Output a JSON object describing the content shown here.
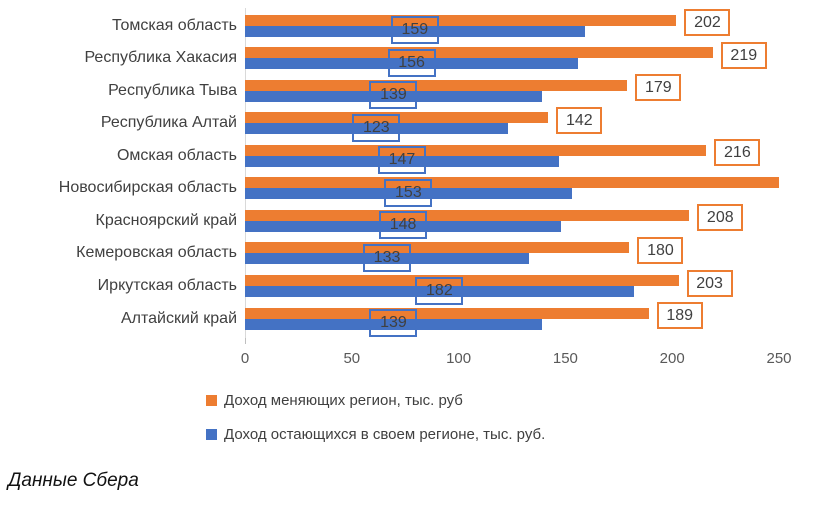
{
  "chart_data": {
    "type": "bar",
    "orientation": "horizontal",
    "title": "",
    "categories": [
      "Томская область",
      "Республика Хакасия",
      "Республика Тыва",
      "Республика Алтай",
      "Омская область",
      "Новосибирская область",
      "Красноярский край",
      "Кемеровская область",
      "Иркутская область",
      "Алтайский край"
    ],
    "series": [
      {
        "name": "Доход меняющих регион, тыс. руб",
        "color": "#ED7D31",
        "values": [
          202,
          219,
          179,
          142,
          216,
          250,
          208,
          180,
          203,
          189
        ],
        "labels": [
          "202",
          "219",
          "179",
          "142",
          "216",
          "",
          "208",
          "180",
          "203",
          "189"
        ],
        "label_position": "outside-end"
      },
      {
        "name": "Доход остающихся в своем регионе, тыс. руб.",
        "color": "#4472C4",
        "values": [
          159,
          156,
          139,
          123,
          147,
          153,
          148,
          133,
          182,
          139
        ],
        "labels": [
          "159",
          "156",
          "139",
          "123",
          "147",
          "153",
          "148",
          "133",
          "182",
          "139"
        ],
        "label_position": "inside-center"
      }
    ],
    "x_ticks": [
      0,
      50,
      100,
      150,
      200,
      250
    ],
    "xlim": [
      0,
      250
    ],
    "grid": false,
    "legend_position": "bottom-left",
    "note": "value for Новосибирская область (orange) estimated from bar end at the 250 gridline; its data label is not visible"
  },
  "colors": {
    "orange_series": "#ED7D31",
    "blue_series": "#4472C4",
    "label_text": "#404040",
    "axis_text": "#595959",
    "axis_line": "#D9D9D9"
  },
  "footer": {
    "source_note": "Данные Сбера"
  }
}
